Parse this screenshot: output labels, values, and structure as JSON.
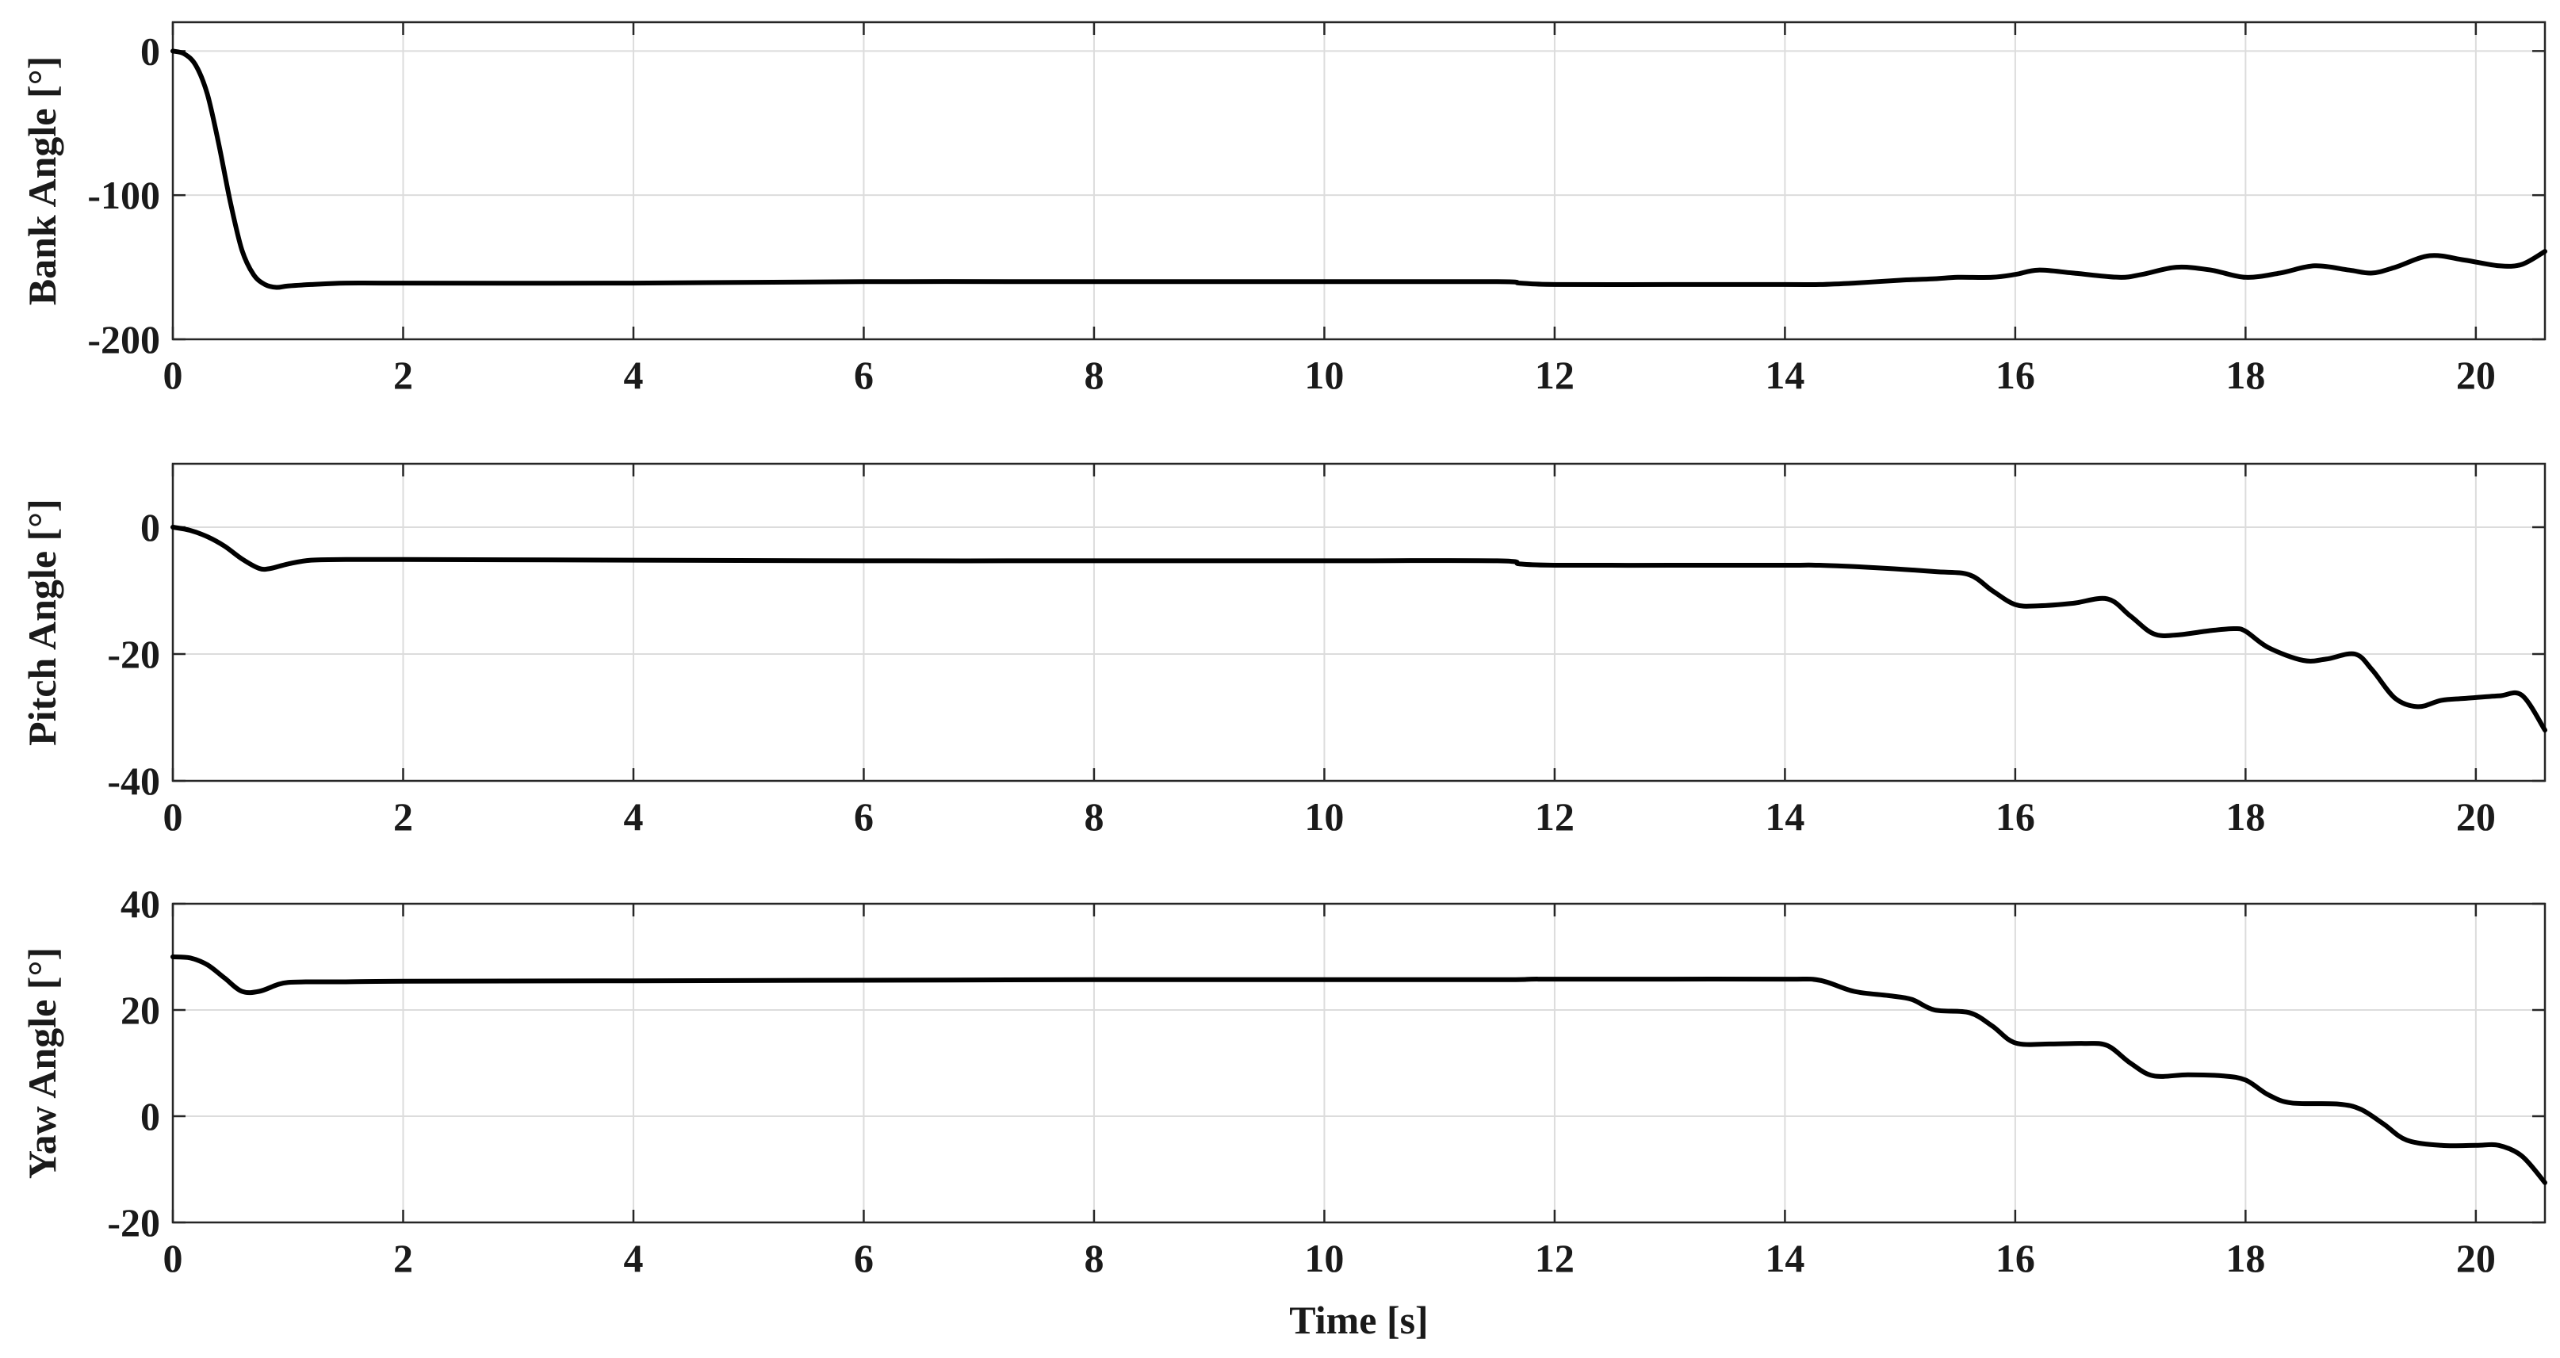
{
  "chart_data": [
    {
      "type": "line",
      "ylabel": "Bank Angle [°]",
      "xlabel": "",
      "xlim": [
        0,
        20.6
      ],
      "ylim": [
        -200,
        20
      ],
      "xticks": [
        0,
        2,
        4,
        6,
        8,
        10,
        12,
        14,
        16,
        18,
        20
      ],
      "yticks": [
        -200,
        -100,
        0
      ],
      "grid": true,
      "series": [
        {
          "x": [
            0,
            0.1,
            0.2,
            0.3,
            0.4,
            0.5,
            0.6,
            0.7,
            0.8,
            0.9,
            1.0,
            1.2,
            1.5,
            2,
            4,
            6,
            8,
            10,
            11.5,
            11.7,
            12,
            13,
            14,
            14.3,
            14.6,
            15,
            15.3,
            15.5,
            15.8,
            16.0,
            16.2,
            16.5,
            16.9,
            17.1,
            17.4,
            17.7,
            18.0,
            18.3,
            18.6,
            18.9,
            19.1,
            19.3,
            19.6,
            19.9,
            20.2,
            20.4,
            20.6
          ],
          "y": [
            0,
            -2,
            -10,
            -30,
            -65,
            -105,
            -138,
            -155,
            -162,
            -164,
            -163,
            -162,
            -161,
            -161,
            -161,
            -160,
            -160,
            -160,
            -160,
            -161,
            -162,
            -162,
            -162,
            -162,
            -161,
            -159,
            -158,
            -157,
            -157,
            -155,
            -152,
            -154,
            -157,
            -155,
            -150,
            -152,
            -157,
            -154,
            -149,
            -152,
            -154,
            -150,
            -142,
            -145,
            -149,
            -148,
            -139
          ]
        }
      ]
    },
    {
      "type": "line",
      "ylabel": "Pitch Angle [°]",
      "xlabel": "",
      "xlim": [
        0,
        20.6
      ],
      "ylim": [
        -40,
        10
      ],
      "xticks": [
        0,
        2,
        4,
        6,
        8,
        10,
        12,
        14,
        16,
        18,
        20
      ],
      "yticks": [
        -40,
        -20,
        0
      ],
      "grid": true,
      "series": [
        {
          "x": [
            0,
            0.15,
            0.3,
            0.45,
            0.6,
            0.75,
            0.85,
            1.0,
            1.2,
            1.5,
            2,
            4,
            6,
            8,
            10,
            11.5,
            11.7,
            12,
            13,
            14,
            14.3,
            14.8,
            15.3,
            15.6,
            15.8,
            16.0,
            16.2,
            16.5,
            16.8,
            17.0,
            17.2,
            17.4,
            17.7,
            17.9,
            18.0,
            18.2,
            18.5,
            18.7,
            18.95,
            19.1,
            19.3,
            19.5,
            19.7,
            19.9,
            20.2,
            20.4,
            20.6
          ],
          "y": [
            0,
            -0.5,
            -1.5,
            -3,
            -5,
            -6.5,
            -6.5,
            -5.8,
            -5.2,
            -5.1,
            -5.1,
            -5.2,
            -5.3,
            -5.3,
            -5.3,
            -5.3,
            -5.8,
            -6.0,
            -6.0,
            -6.0,
            -6.0,
            -6.4,
            -7.0,
            -7.5,
            -10,
            -12.2,
            -12.4,
            -12.0,
            -11.3,
            -14,
            -16.8,
            -17.0,
            -16.3,
            -16.0,
            -16.4,
            -19,
            -21,
            -20.8,
            -20.0,
            -22.5,
            -27,
            -28.3,
            -27.3,
            -27.0,
            -26.6,
            -26.5,
            -32
          ]
        }
      ]
    },
    {
      "type": "line",
      "ylabel": "Yaw Angle [°]",
      "xlabel": "Time [s]",
      "xlim": [
        0,
        20.6
      ],
      "ylim": [
        -20,
        40
      ],
      "xticks": [
        0,
        2,
        4,
        6,
        8,
        10,
        12,
        14,
        16,
        18,
        20
      ],
      "yticks": [
        -20,
        0,
        20,
        40
      ],
      "grid": true,
      "series": [
        {
          "x": [
            0,
            0.15,
            0.3,
            0.45,
            0.6,
            0.75,
            0.9,
            1.0,
            1.2,
            1.5,
            2,
            4,
            6,
            8,
            10,
            11.5,
            11.8,
            12,
            13,
            14,
            14.3,
            14.6,
            14.9,
            15.1,
            15.3,
            15.6,
            15.8,
            16.0,
            16.3,
            16.6,
            16.8,
            17.0,
            17.2,
            17.5,
            17.8,
            18.0,
            18.2,
            18.4,
            18.8,
            19.0,
            19.2,
            19.4,
            19.7,
            20.0,
            20.2,
            20.4,
            20.6
          ],
          "y": [
            30,
            29.8,
            28.5,
            26,
            23.5,
            23.5,
            24.7,
            25.2,
            25.3,
            25.3,
            25.4,
            25.5,
            25.6,
            25.7,
            25.7,
            25.7,
            25.8,
            25.8,
            25.8,
            25.8,
            25.6,
            23.5,
            22.7,
            22,
            20,
            19.5,
            17,
            13.8,
            13.6,
            13.7,
            13.3,
            10,
            7.6,
            7.8,
            7.6,
            6.8,
            4,
            2.5,
            2.3,
            1.3,
            -1.5,
            -4.5,
            -5.5,
            -5.5,
            -5.5,
            -7.5,
            -12.5
          ]
        }
      ]
    }
  ]
}
